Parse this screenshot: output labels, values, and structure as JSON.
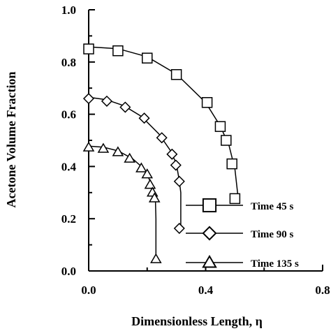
{
  "chart_data": {
    "type": "scatter",
    "title": "",
    "xlabel": "Dimensionless Length, η",
    "ylabel": "Acetone Volume Fraction",
    "xlim": [
      0.0,
      0.8
    ],
    "ylim": [
      0.0,
      1.0
    ],
    "x_ticks": [
      0.0,
      0.4,
      0.8
    ],
    "x_tick_labels": [
      "0.0",
      "0.4",
      "0.8"
    ],
    "y_ticks": [
      0.0,
      0.2,
      0.4,
      0.6,
      0.8,
      1.0
    ],
    "y_tick_labels": [
      "0.0",
      "0.2",
      "0.4",
      "0.6",
      "0.8",
      "1.0"
    ],
    "grid": false,
    "legend_position": "lower-right",
    "series": [
      {
        "name": "Time 45 s",
        "marker": "square",
        "points": [
          {
            "x": 0.0,
            "y": 0.85
          },
          {
            "x": 0.1,
            "y": 0.843
          },
          {
            "x": 0.2,
            "y": 0.815
          },
          {
            "x": 0.3,
            "y": 0.752
          },
          {
            "x": 0.405,
            "y": 0.645
          },
          {
            "x": 0.45,
            "y": 0.553
          },
          {
            "x": 0.47,
            "y": 0.5
          },
          {
            "x": 0.49,
            "y": 0.41
          },
          {
            "x": 0.5,
            "y": 0.277
          }
        ],
        "curve": [
          {
            "x": 0.0,
            "y": 0.858
          },
          {
            "x": 0.1,
            "y": 0.851
          },
          {
            "x": 0.2,
            "y": 0.82
          },
          {
            "x": 0.3,
            "y": 0.754
          },
          {
            "x": 0.4,
            "y": 0.645
          },
          {
            "x": 0.45,
            "y": 0.555
          },
          {
            "x": 0.48,
            "y": 0.48
          },
          {
            "x": 0.5,
            "y": 0.39
          },
          {
            "x": 0.51,
            "y": 0.29
          }
        ]
      },
      {
        "name": "Time 90 s",
        "marker": "diamond",
        "points": [
          {
            "x": 0.0,
            "y": 0.66
          },
          {
            "x": 0.062,
            "y": 0.65
          },
          {
            "x": 0.125,
            "y": 0.627
          },
          {
            "x": 0.19,
            "y": 0.585
          },
          {
            "x": 0.25,
            "y": 0.51
          },
          {
            "x": 0.285,
            "y": 0.447
          },
          {
            "x": 0.298,
            "y": 0.405
          },
          {
            "x": 0.31,
            "y": 0.343
          },
          {
            "x": 0.31,
            "y": 0.163
          }
        ],
        "curve": [
          {
            "x": 0.0,
            "y": 0.665
          },
          {
            "x": 0.06,
            "y": 0.656
          },
          {
            "x": 0.12,
            "y": 0.633
          },
          {
            "x": 0.18,
            "y": 0.592
          },
          {
            "x": 0.24,
            "y": 0.525
          },
          {
            "x": 0.28,
            "y": 0.46
          },
          {
            "x": 0.3,
            "y": 0.41
          },
          {
            "x": 0.31,
            "y": 0.345
          },
          {
            "x": 0.315,
            "y": 0.3
          },
          {
            "x": 0.315,
            "y": 0.163
          }
        ]
      },
      {
        "name": "Time 135 s",
        "marker": "triangle",
        "points": [
          {
            "x": 0.0,
            "y": 0.473
          },
          {
            "x": 0.05,
            "y": 0.468
          },
          {
            "x": 0.1,
            "y": 0.455
          },
          {
            "x": 0.14,
            "y": 0.43
          },
          {
            "x": 0.18,
            "y": 0.393
          },
          {
            "x": 0.2,
            "y": 0.37
          },
          {
            "x": 0.21,
            "y": 0.33
          },
          {
            "x": 0.218,
            "y": 0.3
          },
          {
            "x": 0.225,
            "y": 0.278
          },
          {
            "x": 0.23,
            "y": 0.045
          }
        ],
        "curve": [
          {
            "x": 0.0,
            "y": 0.478
          },
          {
            "x": 0.05,
            "y": 0.474
          },
          {
            "x": 0.1,
            "y": 0.46
          },
          {
            "x": 0.15,
            "y": 0.43
          },
          {
            "x": 0.19,
            "y": 0.39
          },
          {
            "x": 0.21,
            "y": 0.345
          },
          {
            "x": 0.222,
            "y": 0.31
          },
          {
            "x": 0.228,
            "y": 0.278
          },
          {
            "x": 0.23,
            "y": 0.2
          },
          {
            "x": 0.23,
            "y": 0.045
          }
        ]
      }
    ]
  }
}
